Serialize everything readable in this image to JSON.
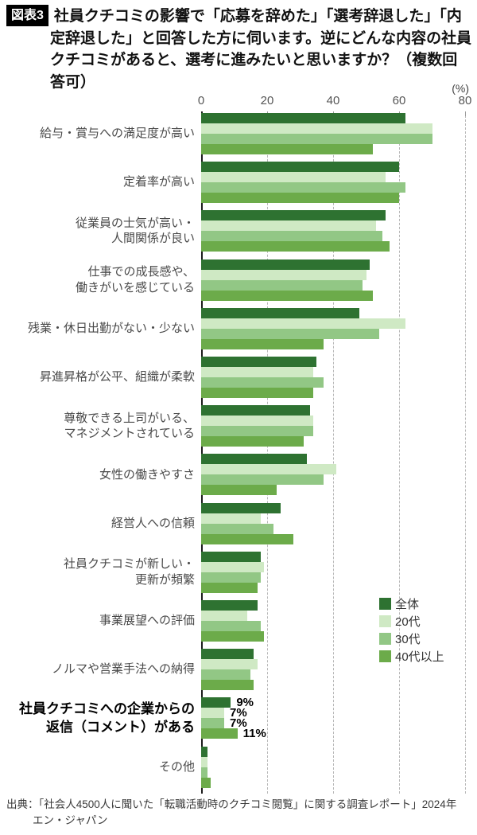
{
  "header": {
    "figure_label": "図表3",
    "title": "社員クチコミの影響で「応募を辞めた」「選考辞退した」「内定辞退した」と回答した方に伺います。逆にどんな内容の社員クチコミがあると、選考に進みたいと思いますか？（複数回答可）"
  },
  "axis": {
    "unit_label": "(%)"
  },
  "chart_data": {
    "type": "bar",
    "orientation": "horizontal",
    "unit": "%",
    "xlim": [
      0,
      80
    ],
    "x_ticks": [
      0,
      20,
      40,
      60,
      80
    ],
    "grid": "vertical-dashed",
    "legend_position": "middle-right",
    "categories": [
      {
        "label": "給与・賞与への満足度が高い",
        "lines": [
          "給与・賞与への満足度が高い"
        ],
        "bold": false
      },
      {
        "label": "定着率が高い",
        "lines": [
          "定着率が高い"
        ],
        "bold": false
      },
      {
        "label": "従業員の士気が高い・人間関係が良い",
        "lines": [
          "従業員の士気が高い・",
          "人間関係が良い"
        ],
        "bold": false
      },
      {
        "label": "仕事での成長感や、働きがいを感じている",
        "lines": [
          "仕事での成長感や、",
          "働きがいを感じている"
        ],
        "bold": false
      },
      {
        "label": "残業・休日出勤がない・少ない",
        "lines": [
          "残業・休日出勤がない・少ない"
        ],
        "bold": false
      },
      {
        "label": "昇進昇格が公平、組織が柔軟",
        "lines": [
          "昇進昇格が公平、組織が柔軟"
        ],
        "bold": false
      },
      {
        "label": "尊敬できる上司がいる、マネジメントされている",
        "lines": [
          "尊敬できる上司がいる、",
          "マネジメントされている"
        ],
        "bold": false
      },
      {
        "label": "女性の働きやすさ",
        "lines": [
          "女性の働きやすさ"
        ],
        "bold": false
      },
      {
        "label": "経営人への信頼",
        "lines": [
          "経営人への信頼"
        ],
        "bold": false
      },
      {
        "label": "社員クチコミが新しい・更新が頻繁",
        "lines": [
          "社員クチコミが新しい・",
          "更新が頻繁"
        ],
        "bold": false
      },
      {
        "label": "事業展望への評価",
        "lines": [
          "事業展望への評価"
        ],
        "bold": false
      },
      {
        "label": "ノルマや営業手法への納得",
        "lines": [
          "ノルマや営業手法への納得"
        ],
        "bold": false
      },
      {
        "label": "社員クチコミへの企業からの返信（コメント）がある",
        "lines": [
          "社員クチコミへの企業からの",
          "返信（コメント）がある"
        ],
        "bold": true
      },
      {
        "label": "その他",
        "lines": [
          "その他"
        ],
        "bold": false
      }
    ],
    "series": [
      {
        "name": "全体",
        "color": "#2e7231",
        "values": [
          62,
          60,
          56,
          51,
          48,
          35,
          33,
          32,
          24,
          18,
          17,
          16,
          9,
          2
        ]
      },
      {
        "name": "20代",
        "color": "#cfe9c4",
        "values": [
          70,
          56,
          53,
          50,
          62,
          34,
          34,
          41,
          18,
          19,
          14,
          17,
          7,
          2
        ]
      },
      {
        "name": "30代",
        "color": "#92c785",
        "values": [
          70,
          62,
          55,
          49,
          54,
          37,
          34,
          37,
          22,
          18,
          18,
          15,
          7,
          2
        ]
      },
      {
        "name": "40代以上",
        "color": "#6cab4a",
        "values": [
          52,
          60,
          57,
          52,
          37,
          34,
          31,
          23,
          28,
          17,
          19,
          16,
          11,
          3
        ]
      }
    ],
    "value_labels": {
      "category_index": 12,
      "labels": [
        "9%",
        "7%",
        "7%",
        "11%"
      ]
    }
  },
  "source": {
    "line1": "出典：「社会人4500人に聞いた「転職活動時のクチコミ閲覧」に関する調査レポート」2024年",
    "line2": "エン・ジャパン"
  }
}
